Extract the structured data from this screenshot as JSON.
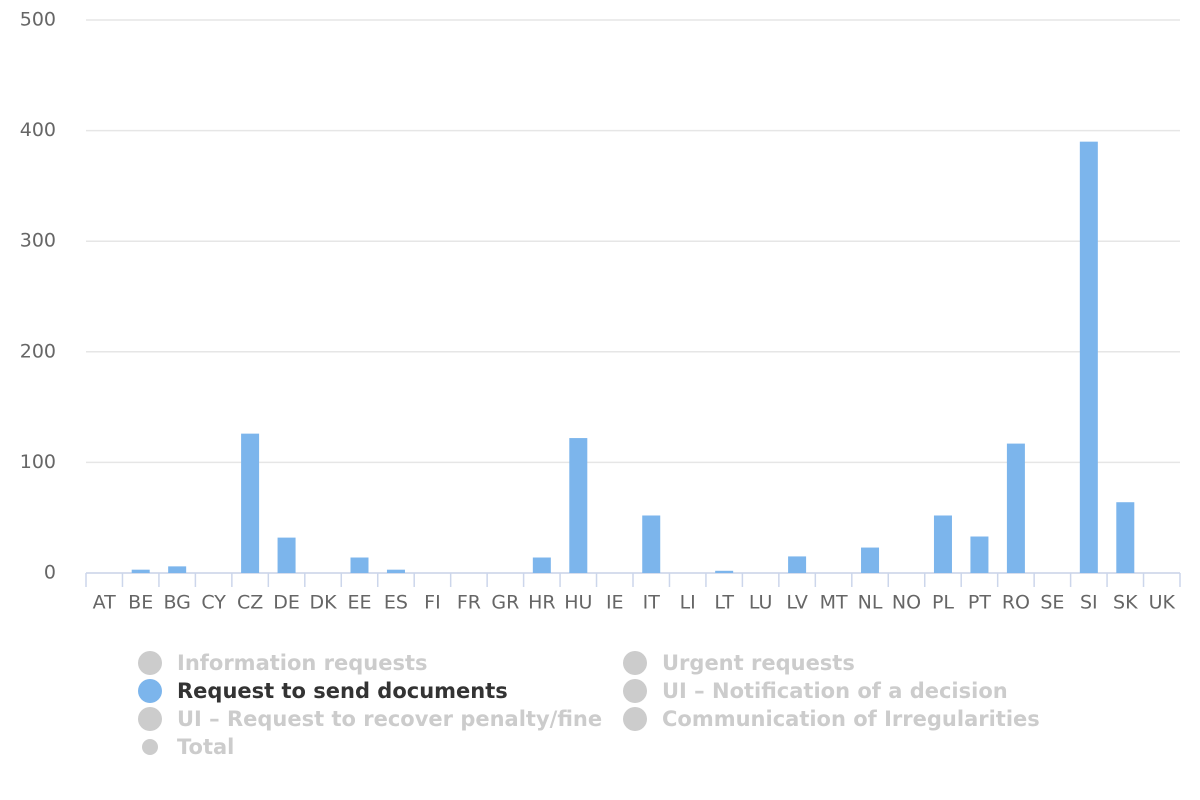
{
  "chart_data": {
    "type": "bar",
    "categories": [
      "AT",
      "BE",
      "BG",
      "CY",
      "CZ",
      "DE",
      "DK",
      "EE",
      "ES",
      "FI",
      "FR",
      "GR",
      "HR",
      "HU",
      "IE",
      "IT",
      "LI",
      "LT",
      "LU",
      "LV",
      "MT",
      "NL",
      "NO",
      "PL",
      "PT",
      "RO",
      "SE",
      "SI",
      "SK",
      "UK"
    ],
    "series": [
      {
        "name": "Information requests",
        "visible": false
      },
      {
        "name": "Urgent requests",
        "visible": false
      },
      {
        "name": "Request to send documents",
        "visible": true,
        "color": "#7cb5ec",
        "values": [
          0,
          3,
          6,
          0,
          126,
          32,
          0,
          14,
          3,
          0,
          0,
          0,
          14,
          122,
          0,
          52,
          0,
          2,
          0,
          15,
          0,
          23,
          0,
          52,
          33,
          117,
          0,
          390,
          64,
          0
        ]
      },
      {
        "name": "UI – Notification of a decision",
        "visible": false
      },
      {
        "name": "UI – Request to recover penalty/fine",
        "visible": false
      },
      {
        "name": "Communication of Irregularities",
        "visible": false
      },
      {
        "name": "Total",
        "visible": false,
        "type": "line"
      }
    ],
    "ylim": [
      0,
      500
    ],
    "yticks": [
      0,
      100,
      200,
      300,
      400,
      500
    ],
    "grid": true
  }
}
